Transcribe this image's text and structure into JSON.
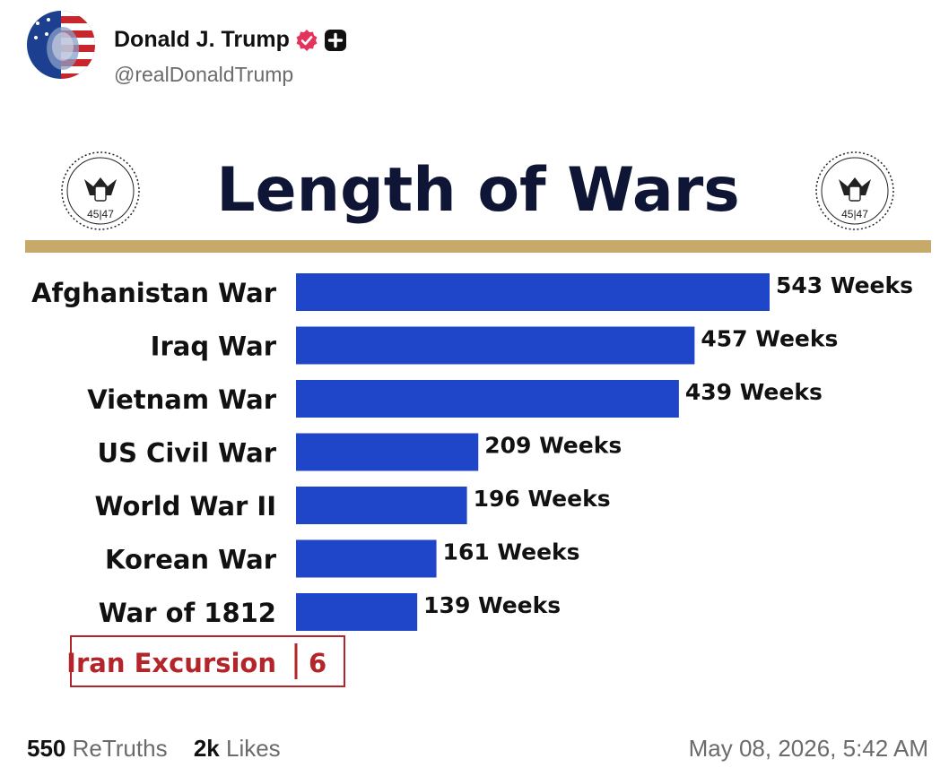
{
  "author": {
    "display_name": "Donald J. Trump",
    "handle": "@realDonaldTrump",
    "verified_icon": "verified-badge-icon",
    "plus_icon": "plus-badge-icon"
  },
  "post_image": {
    "seal_text_left": "45|47",
    "seal_text_right": "45|47",
    "highlight_label": "Iran Excursion",
    "highlight_value": "6"
  },
  "chart_data": {
    "type": "bar",
    "orientation": "horizontal",
    "title": "Length of Wars",
    "categories": [
      "Afghanistan War",
      "Iraq War",
      "Vietnam War",
      "US Civil War",
      "World War II",
      "Korean War",
      "War of 1812"
    ],
    "values": [
      543,
      457,
      439,
      209,
      196,
      161,
      139
    ],
    "value_labels": [
      "543 Weeks",
      "457 Weeks",
      "439 Weeks",
      "209 Weeks",
      "196 Weeks",
      "161 Weeks",
      "139 Weeks"
    ],
    "bar_color": "#1f45c8",
    "xlim": [
      0,
      543
    ],
    "grid": false
  },
  "footer": {
    "retruths_count": "550",
    "retruths_label": "ReTruths",
    "likes_count": "2k",
    "likes_label": "Likes",
    "timestamp": "May 08, 2026, 5:42 AM"
  },
  "colors": {
    "title": "#0f1535",
    "gold_rule": "#c7a96a",
    "highlight_red": "#b3252a",
    "verified": "#e3355b"
  }
}
